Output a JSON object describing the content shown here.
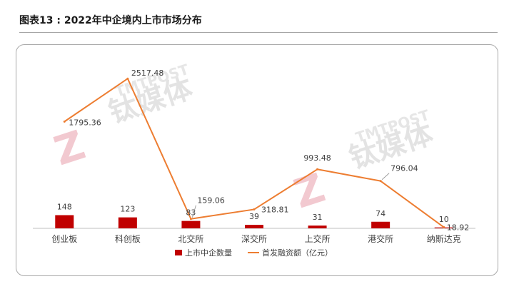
{
  "header": {
    "title": "图表13 : 2022年中企境内上市市场分布"
  },
  "watermark": {
    "brand_cn": "钛媒体",
    "brand_en": "TMTPOST"
  },
  "colors": {
    "bar": "#c00000",
    "line": "#ed7d31",
    "axis": "#bfbfbf",
    "text": "#404040"
  },
  "chart_data": {
    "type": "bar",
    "title": "",
    "categories": [
      "创业板",
      "科创板",
      "北交所",
      "深交所",
      "上交所",
      "港交所",
      "纳斯达克"
    ],
    "series": [
      {
        "name": "上市中企数量",
        "type": "bar",
        "values": [
          148,
          123,
          83,
          39,
          31,
          74,
          10
        ]
      },
      {
        "name": "首发融资额（亿元）",
        "type": "line",
        "values": [
          1795.36,
          2517.48,
          159.06,
          318.81,
          993.48,
          796.04,
          18.92
        ]
      }
    ],
    "bar_ylim": [
      0,
      2000
    ],
    "line_ylim": [
      0,
      3000
    ],
    "legend": "bottom",
    "grid": false
  }
}
